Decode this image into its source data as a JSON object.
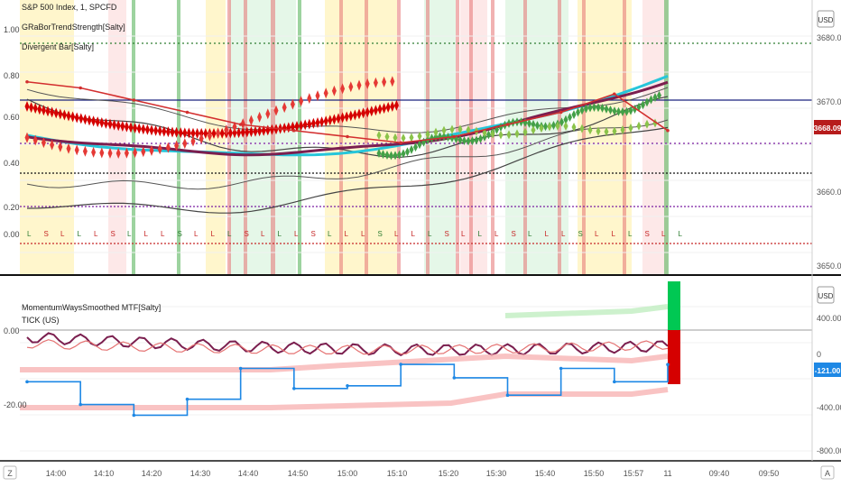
{
  "top_panel": {
    "legend": [
      "S&P 500 Index, 1, SPCFD",
      "GRaBorTrendStrength[Salty]",
      "Divergent Bar[Salty]"
    ],
    "left_axis_ticks": [
      "1.00",
      "0.80",
      "0.60",
      "0.40",
      "0.20",
      "0.00"
    ],
    "right_axis_ticks": [
      "3680.00",
      "3670.00",
      "3660.00",
      "3650.00"
    ],
    "currency": "USD",
    "price_badge": "3668.09",
    "badge_color": "#b71c1c"
  },
  "bottom_panel": {
    "legend": [
      "MomentumWaysSmoothed MTF[Salty]",
      "TICK (US)"
    ],
    "left_axis_ticks": [
      "0.00",
      "-20.00"
    ],
    "right_axis_ticks": [
      "400.00",
      "0",
      "-400.00",
      "-800.00"
    ],
    "currency": "USD",
    "price_badge": "-121.00",
    "badge_color": "#1e88e5"
  },
  "time_axis": [
    "14:00",
    "14:10",
    "14:20",
    "14:30",
    "14:40",
    "14:50",
    "15:00",
    "15:10",
    "15:20",
    "15:30",
    "15:40",
    "15:50",
    "15:57",
    "11",
    "09:40",
    "09:50"
  ],
  "footer": {
    "left_icon_label": "Z",
    "right_icon_label": "A"
  },
  "chart_data": [
    {
      "type": "line",
      "title": "S&P 500 Index, 1, SPCFD",
      "ylabel": "",
      "ylim": [
        3645,
        3685
      ],
      "x": [
        "14:00",
        "14:10",
        "14:20",
        "14:30",
        "14:40",
        "14:50",
        "15:00",
        "15:10",
        "15:20",
        "15:30",
        "15:40",
        "15:50",
        "15:57"
      ],
      "series": [
        {
          "values": [
            3676,
            3675,
            3673,
            3671,
            3669,
            3668,
            3667,
            3666,
            3667,
            3669,
            3671,
            3674,
            3668
          ]
        }
      ],
      "last_price": 3668.09
    },
    {
      "type": "line",
      "title": "TICK (US)",
      "ylabel": "",
      "ylim": [
        -800,
        500
      ],
      "x": [
        "14:00",
        "14:10",
        "14:20",
        "14:30",
        "14:40",
        "14:50",
        "15:00",
        "15:10",
        "15:20",
        "15:30",
        "15:40",
        "15:50",
        "15:57"
      ],
      "series": [
        {
          "values": [
            -250,
            -420,
            -500,
            -380,
            -150,
            -300,
            -280,
            -120,
            -220,
            -350,
            -150,
            -250,
            -121
          ]
        }
      ],
      "last_price": -121
    }
  ]
}
